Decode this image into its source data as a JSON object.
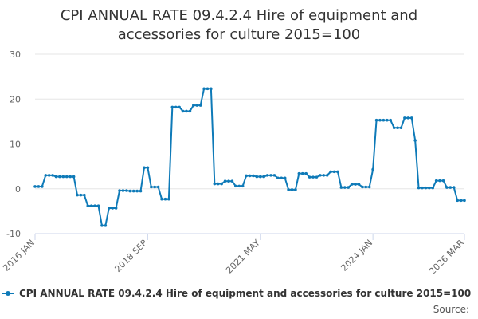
{
  "chart_data": {
    "type": "line",
    "title_lines": [
      "CPI ANNUAL RATE 09.4.2.4 Hire of equipment and",
      "accessories for culture 2015=100"
    ],
    "ylim": [
      -10,
      30
    ],
    "yticks": [
      -10,
      0,
      10,
      20,
      30
    ],
    "x_tick_labels": [
      {
        "label": "2016 JAN",
        "index": 0
      },
      {
        "label": "2018 SEP",
        "index": 32
      },
      {
        "label": "2021 MAY",
        "index": 64
      },
      {
        "label": "2024 JAN",
        "index": 96
      },
      {
        "label": "2026 MAR",
        "index": 122
      }
    ],
    "series": [
      {
        "name": "CPI ANNUAL RATE 09.4.2.4 Hire of equipment and accessories for culture 2015=100",
        "color": "#0e7ab8",
        "values": [
          0.5,
          0.5,
          0.5,
          3.0,
          3.0,
          3.0,
          2.7,
          2.7,
          2.7,
          2.7,
          2.7,
          2.7,
          -1.4,
          -1.4,
          -1.4,
          -3.8,
          -3.8,
          -3.8,
          -3.8,
          -8.2,
          -8.2,
          -4.3,
          -4.3,
          -4.3,
          -0.4,
          -0.4,
          -0.4,
          -0.5,
          -0.5,
          -0.5,
          -0.5,
          4.7,
          4.7,
          0.4,
          0.4,
          0.4,
          -2.3,
          -2.3,
          -2.3,
          18.2,
          18.2,
          18.2,
          17.3,
          17.3,
          17.3,
          18.6,
          18.6,
          18.6,
          22.3,
          22.3,
          22.3,
          1.1,
          1.1,
          1.1,
          1.7,
          1.7,
          1.7,
          0.6,
          0.6,
          0.6,
          2.9,
          2.9,
          2.9,
          2.7,
          2.7,
          2.7,
          3.0,
          3.0,
          3.0,
          2.4,
          2.4,
          2.4,
          -0.2,
          -0.2,
          -0.2,
          3.4,
          3.4,
          3.4,
          2.6,
          2.6,
          2.6,
          3.0,
          3.0,
          3.0,
          3.8,
          3.8,
          3.8,
          0.3,
          0.3,
          0.3,
          1.0,
          1.0,
          1.0,
          0.4,
          0.4,
          0.4,
          4.3,
          15.3,
          15.3,
          15.3,
          15.3,
          15.3,
          13.6,
          13.6,
          13.6,
          15.8,
          15.8,
          15.8,
          10.8,
          0.2,
          0.2,
          0.2,
          0.2,
          0.2,
          1.8,
          1.8,
          1.8,
          0.3,
          0.3,
          0.3,
          -2.6,
          -2.6,
          -2.6
        ]
      }
    ]
  },
  "legend": {
    "label": "CPI ANNUAL RATE 09.4.2.4 Hire of equipment and accessories for culture 2015=100"
  },
  "source": {
    "label": "Source:"
  }
}
